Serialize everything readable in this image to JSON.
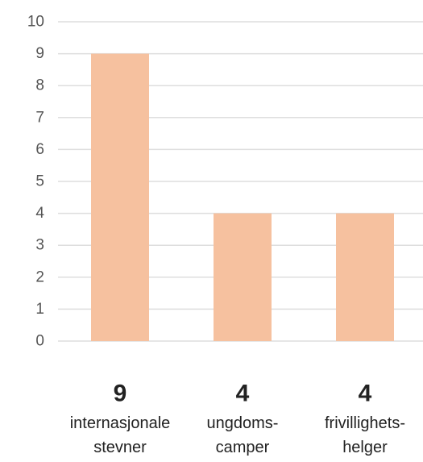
{
  "chart_data": {
    "type": "bar",
    "categories": [
      [
        "internasjonale",
        "stevner"
      ],
      [
        "ungdoms-",
        "camper"
      ],
      [
        "frivillighets-",
        "helger"
      ]
    ],
    "values": [
      9,
      4,
      4
    ],
    "value_labels": [
      "9",
      "4",
      "4"
    ],
    "ylim": [
      0,
      10
    ],
    "yticks": [
      "0",
      "1",
      "2",
      "3",
      "4",
      "5",
      "6",
      "7",
      "8",
      "9",
      "10"
    ],
    "grid": true,
    "bar_color": "#f6c19f",
    "grid_color": "#dedede"
  }
}
